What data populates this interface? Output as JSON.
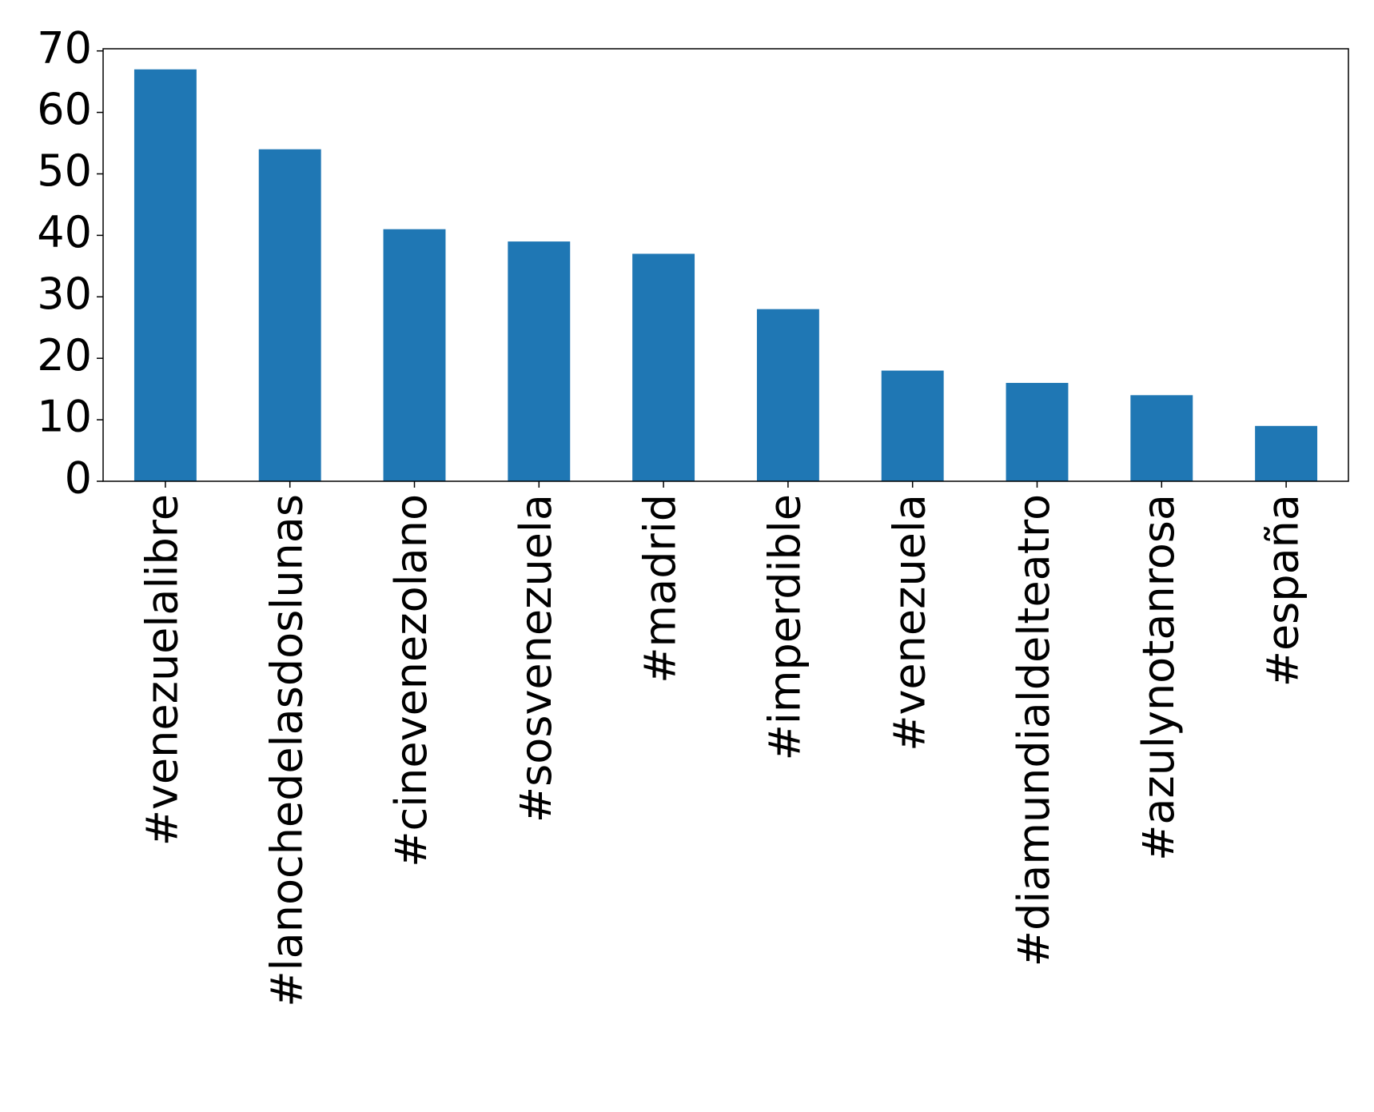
{
  "chart_data": {
    "type": "bar",
    "categories": [
      "#venezuelalibre",
      "#lanochedelasdoslunas",
      "#cinevenezolano",
      "#sosvenezuela",
      "#madrid",
      "#imperdible",
      "#venezuela",
      "#diamundialdelteatro",
      "#azulynotanrosa",
      "#españa"
    ],
    "values": [
      67,
      54,
      41,
      39,
      37,
      28,
      18,
      16,
      14,
      9
    ],
    "color": "#1f77b4",
    "ylim": [
      0,
      70.35
    ],
    "yticks": [
      0,
      10,
      20,
      30,
      40,
      50,
      60,
      70
    ],
    "grid": false
  }
}
